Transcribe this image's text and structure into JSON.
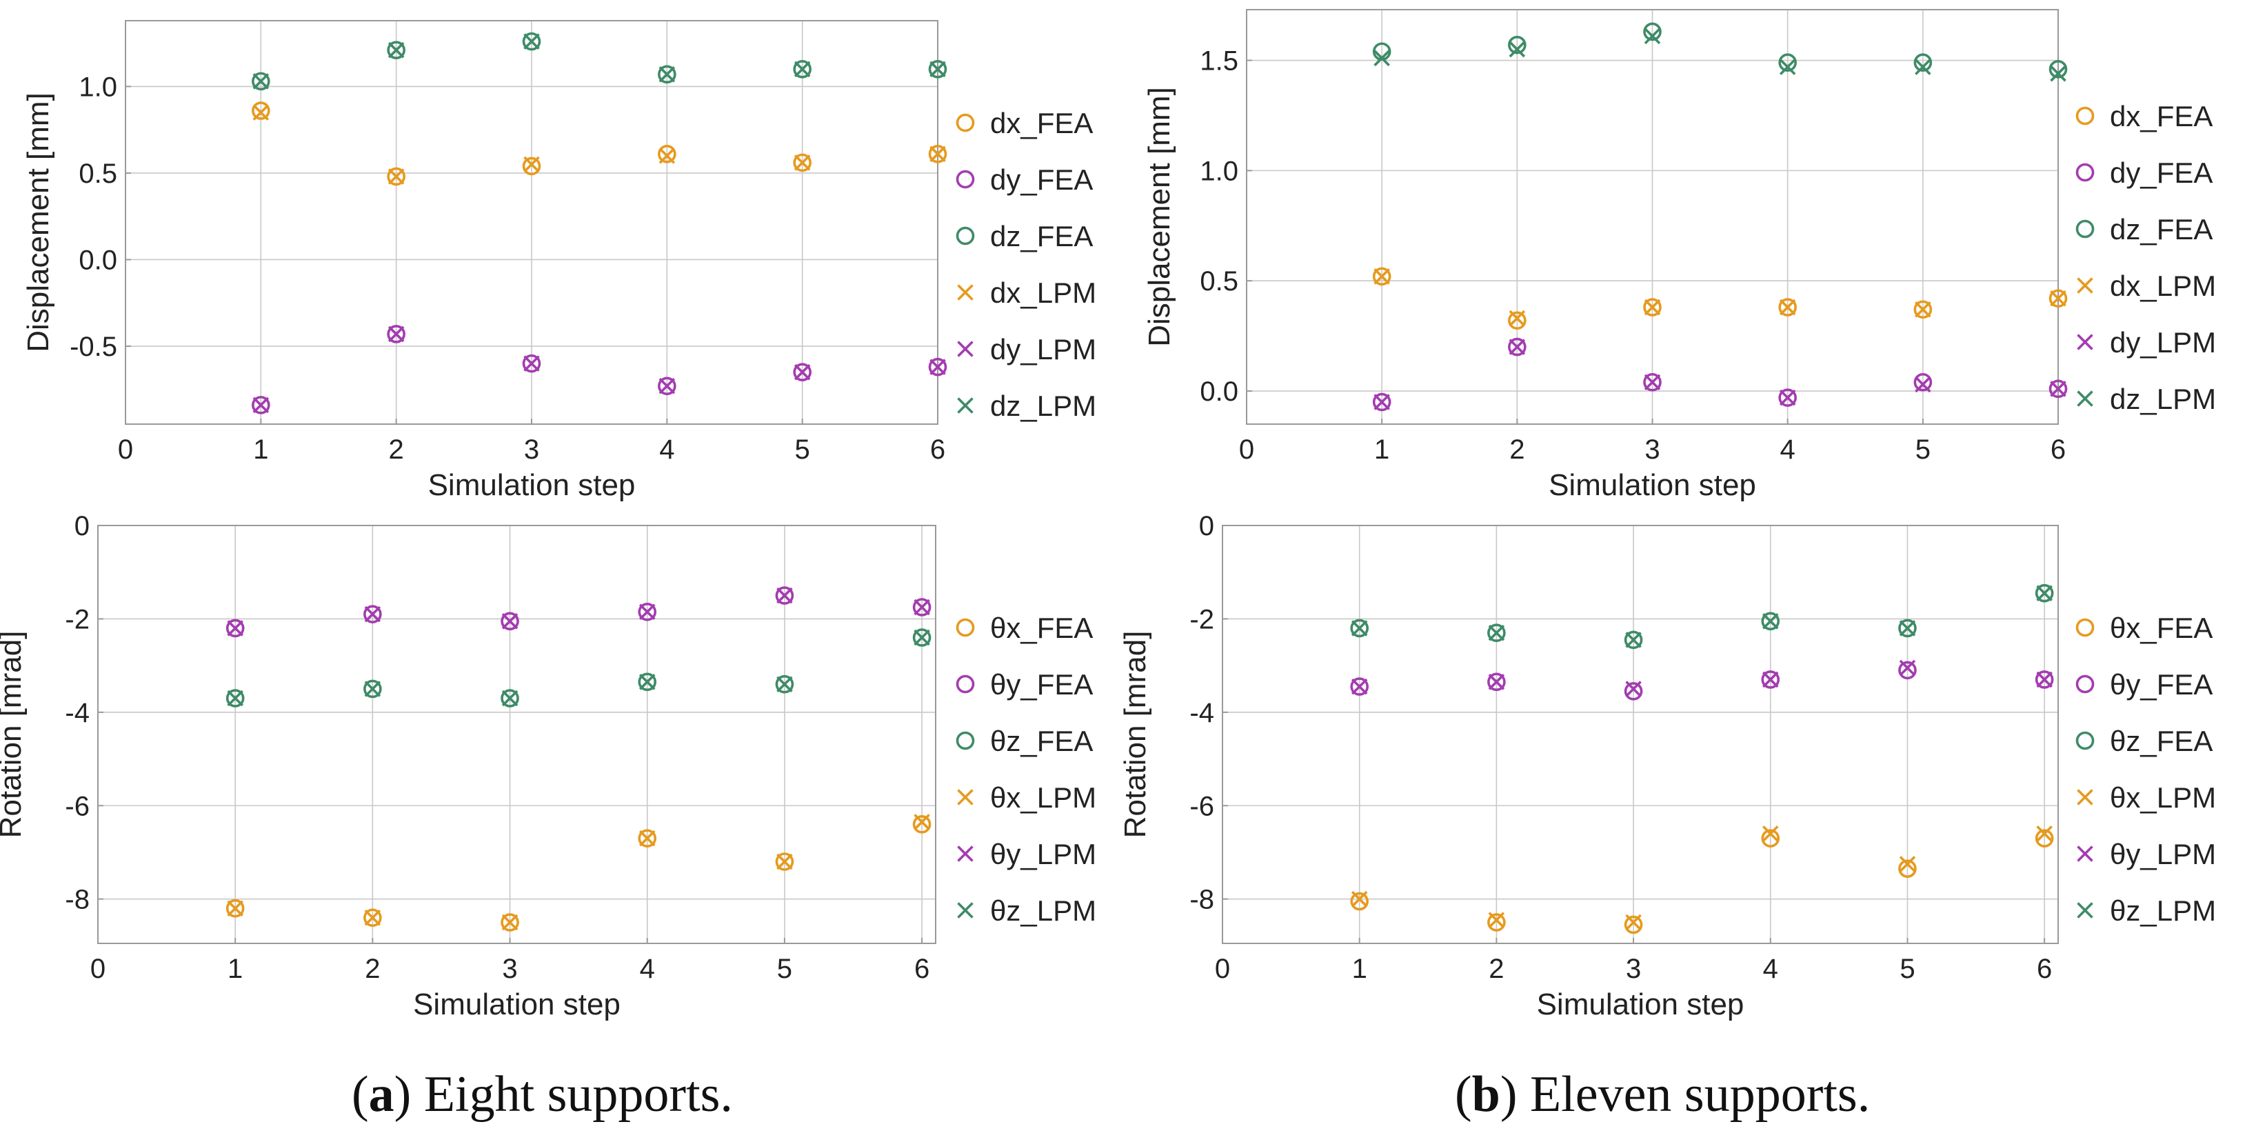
{
  "colors": {
    "x": "#E69A1E",
    "y": "#A33CB0",
    "z": "#3E8B67",
    "grid": "#c8c8c8",
    "frame": "#999999",
    "text": "#222222"
  },
  "legend_disp": [
    "dx_FEA",
    "dy_FEA",
    "dz_FEA",
    "dx_LPM",
    "dy_LPM",
    "dz_LPM"
  ],
  "legend_rot": [
    "θx_FEA",
    "θy_FEA",
    "θz_FEA",
    "θx_LPM",
    "θy_LPM",
    "θz_LPM"
  ],
  "captions": {
    "a_letter": "a",
    "a_text": " Eight supports.",
    "b_letter": "b",
    "b_text": " Eleven supports."
  },
  "chart_data": [
    {
      "id": "a-displacement",
      "type": "scatter",
      "xlabel": "Simulation step",
      "ylabel": "Displacement [mm]",
      "xlim": [
        0,
        6
      ],
      "ylim": [
        -0.95,
        1.38
      ],
      "xticks": [
        0,
        1,
        2,
        3,
        4,
        5,
        6
      ],
      "yticks": [
        -0.5,
        0.0,
        0.5,
        1.0
      ],
      "ytick_labels": [
        "-0.5",
        "0.0",
        "0.5",
        "1.0"
      ],
      "x": [
        1,
        2,
        3,
        4,
        5,
        6
      ],
      "series": [
        {
          "name": "dx_FEA",
          "values": [
            0.86,
            0.48,
            0.54,
            0.61,
            0.56,
            0.61
          ]
        },
        {
          "name": "dy_FEA",
          "values": [
            -0.84,
            -0.43,
            -0.6,
            -0.73,
            -0.65,
            -0.62
          ]
        },
        {
          "name": "dz_FEA",
          "values": [
            1.03,
            1.21,
            1.26,
            1.07,
            1.1,
            1.1
          ]
        },
        {
          "name": "dx_LPM",
          "values": [
            0.85,
            0.48,
            0.55,
            0.6,
            0.56,
            0.61
          ]
        },
        {
          "name": "dy_LPM",
          "values": [
            -0.84,
            -0.43,
            -0.6,
            -0.73,
            -0.65,
            -0.62
          ]
        },
        {
          "name": "dz_LPM",
          "values": [
            1.03,
            1.21,
            1.26,
            1.07,
            1.1,
            1.1
          ]
        }
      ]
    },
    {
      "id": "b-displacement",
      "type": "scatter",
      "xlabel": "Simulation step",
      "ylabel": "Displacement [mm]",
      "xlim": [
        0,
        6
      ],
      "ylim": [
        -0.15,
        1.73
      ],
      "xticks": [
        0,
        1,
        2,
        3,
        4,
        5,
        6
      ],
      "yticks": [
        0.0,
        0.5,
        1.0,
        1.5
      ],
      "ytick_labels": [
        "0.0",
        "0.5",
        "1.0",
        "1.5"
      ],
      "x": [
        1,
        2,
        3,
        4,
        5,
        6
      ],
      "series": [
        {
          "name": "dx_FEA",
          "values": [
            0.52,
            0.32,
            0.38,
            0.38,
            0.37,
            0.42
          ]
        },
        {
          "name": "dy_FEA",
          "values": [
            -0.05,
            0.2,
            0.04,
            -0.03,
            0.04,
            0.01
          ]
        },
        {
          "name": "dz_FEA",
          "values": [
            1.54,
            1.57,
            1.63,
            1.49,
            1.49,
            1.46
          ]
        },
        {
          "name": "dx_LPM",
          "values": [
            0.52,
            0.33,
            0.38,
            0.38,
            0.37,
            0.42
          ]
        },
        {
          "name": "dy_LPM",
          "values": [
            -0.05,
            0.2,
            0.04,
            -0.03,
            0.03,
            0.01
          ]
        },
        {
          "name": "dz_LPM",
          "values": [
            1.51,
            1.55,
            1.61,
            1.47,
            1.47,
            1.44
          ]
        }
      ]
    },
    {
      "id": "a-rotation",
      "type": "scatter",
      "xlabel": "Simulation step",
      "ylabel": "Rotation [mrad]",
      "xlim": [
        0,
        6.1
      ],
      "ylim": [
        -8.95,
        0.0
      ],
      "xticks": [
        0,
        1,
        2,
        3,
        4,
        5,
        6
      ],
      "yticks": [
        -8,
        -6,
        -4,
        -2,
        0
      ],
      "ytick_labels": [
        "-8",
        "-6",
        "-4",
        "-2",
        "0"
      ],
      "x": [
        1,
        2,
        3,
        4,
        5,
        6
      ],
      "series": [
        {
          "name": "θx_FEA",
          "values": [
            -8.2,
            -8.4,
            -8.5,
            -6.7,
            -7.2,
            -6.4
          ]
        },
        {
          "name": "θy_FEA",
          "values": [
            -2.2,
            -1.9,
            -2.05,
            -1.85,
            -1.5,
            -1.75
          ]
        },
        {
          "name": "θz_FEA",
          "values": [
            -3.7,
            -3.5,
            -3.7,
            -3.35,
            -3.4,
            -2.4
          ]
        },
        {
          "name": "θx_LPM",
          "values": [
            -8.2,
            -8.4,
            -8.5,
            -6.7,
            -7.2,
            -6.35
          ]
        },
        {
          "name": "θy_LPM",
          "values": [
            -2.2,
            -1.9,
            -2.05,
            -1.85,
            -1.5,
            -1.75
          ]
        },
        {
          "name": "θz_LPM",
          "values": [
            -3.7,
            -3.5,
            -3.7,
            -3.35,
            -3.4,
            -2.4
          ]
        }
      ]
    },
    {
      "id": "b-rotation",
      "type": "scatter",
      "xlabel": "Simulation step",
      "ylabel": "Rotation [mrad]",
      "xlim": [
        0,
        6.1
      ],
      "ylim": [
        -8.95,
        0.0
      ],
      "xticks": [
        0,
        1,
        2,
        3,
        4,
        5,
        6
      ],
      "yticks": [
        -8,
        -6,
        -4,
        -2,
        0
      ],
      "ytick_labels": [
        "-8",
        "-6",
        "-4",
        "-2",
        "0"
      ],
      "x": [
        1,
        2,
        3,
        4,
        5,
        6
      ],
      "series": [
        {
          "name": "θx_FEA",
          "values": [
            -8.05,
            -8.5,
            -8.55,
            -6.7,
            -7.35,
            -6.7
          ]
        },
        {
          "name": "θy_FEA",
          "values": [
            -3.45,
            -3.35,
            -3.55,
            -3.3,
            -3.1,
            -3.3
          ]
        },
        {
          "name": "θz_FEA",
          "values": [
            -2.2,
            -2.3,
            -2.45,
            -2.05,
            -2.2,
            -1.45
          ]
        },
        {
          "name": "θx_LPM",
          "values": [
            -8.0,
            -8.45,
            -8.5,
            -6.6,
            -7.25,
            -6.6
          ]
        },
        {
          "name": "θy_LPM",
          "values": [
            -3.45,
            -3.35,
            -3.5,
            -3.3,
            -3.05,
            -3.3
          ]
        },
        {
          "name": "θz_LPM",
          "values": [
            -2.2,
            -2.3,
            -2.45,
            -2.05,
            -2.2,
            -1.45
          ]
        }
      ]
    }
  ]
}
